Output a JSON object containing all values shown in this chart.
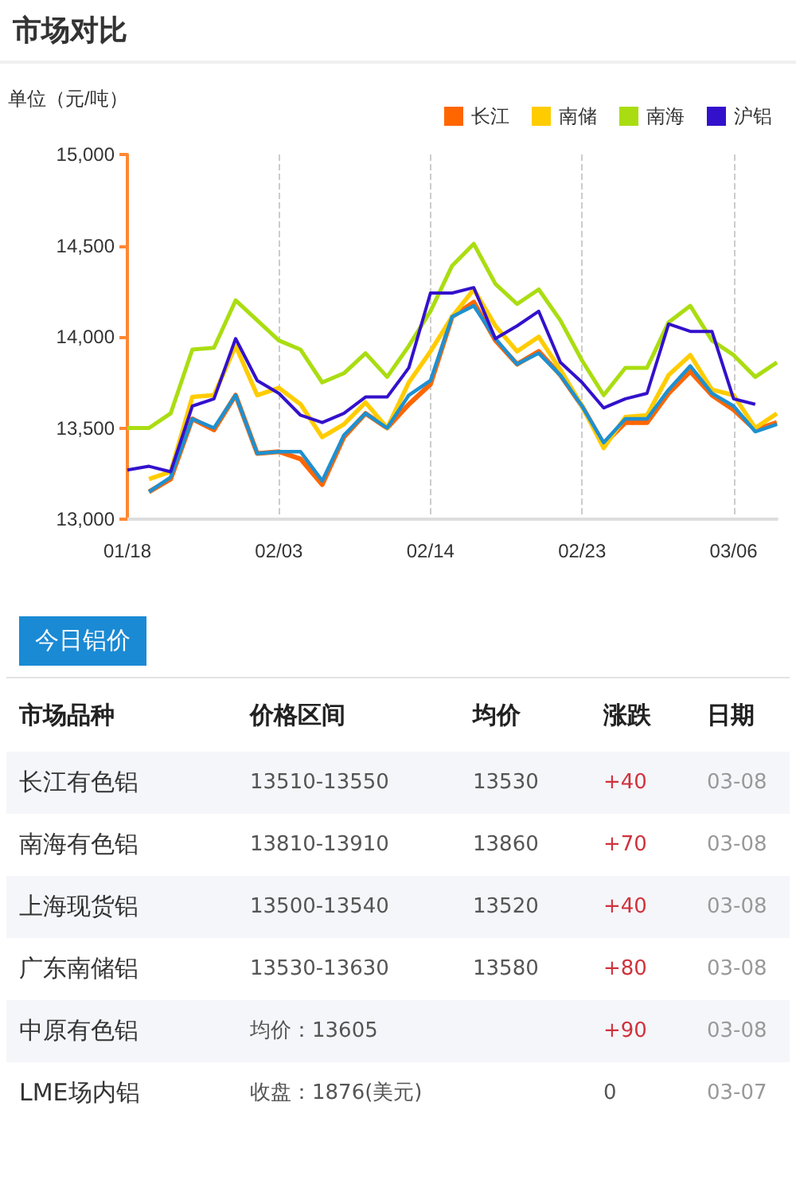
{
  "chart_data": {
    "type": "line",
    "title": "市场对比",
    "ylabel": "单位（元/吨）",
    "categories": [
      "01/18",
      null,
      null,
      null,
      null,
      null,
      null,
      "02/03",
      null,
      null,
      null,
      null,
      null,
      null,
      "02/14",
      null,
      null,
      null,
      null,
      null,
      null,
      "02/23",
      null,
      null,
      null,
      null,
      null,
      null,
      "03/06",
      null,
      null
    ],
    "series": [
      {
        "name": "长江",
        "color": "#ff6600",
        "values": [
          null,
          13150,
          13220,
          13550,
          13490,
          13680,
          13360,
          13370,
          13330,
          13190,
          13450,
          13580,
          13500,
          13630,
          13740,
          14110,
          14190,
          13980,
          13850,
          13920,
          13790,
          13620,
          13410,
          13530,
          13530,
          13690,
          13810,
          13680,
          13600,
          13490,
          13530
        ]
      },
      {
        "name": "南储",
        "color": "#ffcc00",
        "values": [
          null,
          13220,
          13260,
          13670,
          13680,
          13950,
          13680,
          13720,
          13630,
          13450,
          13520,
          13640,
          13500,
          13750,
          13920,
          14110,
          14260,
          14060,
          13920,
          14000,
          13820,
          13620,
          13390,
          13560,
          13570,
          13790,
          13900,
          13710,
          13680,
          13500,
          13580
        ]
      },
      {
        "name": "南海",
        "color": "#aadd11",
        "values": [
          13500,
          13500,
          13580,
          13930,
          13940,
          14200,
          14090,
          13980,
          13930,
          13750,
          13800,
          13910,
          13780,
          13950,
          14140,
          14390,
          14510,
          14290,
          14180,
          14260,
          14090,
          13870,
          13680,
          13830,
          13830,
          14080,
          14170,
          13980,
          13900,
          13780,
          13860
        ]
      },
      {
        "color": "#1e90d0",
        "values": [
          null,
          13150,
          13230,
          13550,
          13500,
          13680,
          13360,
          13370,
          13370,
          13210,
          13460,
          13580,
          13500,
          13680,
          13760,
          14110,
          14170,
          13990,
          13850,
          13910,
          13790,
          13620,
          13420,
          13550,
          13550,
          13710,
          13840,
          13690,
          13620,
          13480,
          13520
        ]
      },
      {
        "name": "沪铝",
        "color": "#3311cc",
        "values": [
          13270,
          13290,
          13260,
          13620,
          13660,
          13990,
          13760,
          13690,
          13570,
          13530,
          13580,
          13670,
          13670,
          13830,
          14240,
          14240,
          14270,
          13990,
          14060,
          14140,
          13860,
          13750,
          13610,
          13660,
          13690,
          14070,
          14030,
          14030,
          13660,
          13630,
          null
        ]
      }
    ],
    "ylim": [
      13000,
      15000
    ],
    "yticks": [
      {
        "value": 13000,
        "label": "13,000"
      },
      {
        "value": 13500,
        "label": "13,500"
      },
      {
        "value": 14000,
        "label": "14,000"
      },
      {
        "value": 14500,
        "label": "14,500"
      },
      {
        "value": 15000,
        "label": "15,000"
      }
    ],
    "grid": "x",
    "legend": "top right",
    "marker": "none",
    "line_style": "solid",
    "annotations": [
      "今日铝价",
      "市场品种",
      "价格区间",
      "均价",
      "涨跌",
      "日期",
      "长江有色铝",
      "13510-13550",
      "13530",
      "+40",
      "03-08",
      "南海有色铝",
      "13810-13910",
      "13860",
      "+70",
      "03-08",
      "上海现货铝",
      "13500-13540",
      "13520",
      "+40",
      "03-08",
      "广东南储铝",
      "13530-13630",
      "13580",
      "+80",
      "03-08",
      "中原有色铝",
      "均价：13605",
      "+90",
      "03-08",
      "LME场内铝",
      "收盘：1876(美元)",
      "0",
      "03-07"
    ]
  }
}
